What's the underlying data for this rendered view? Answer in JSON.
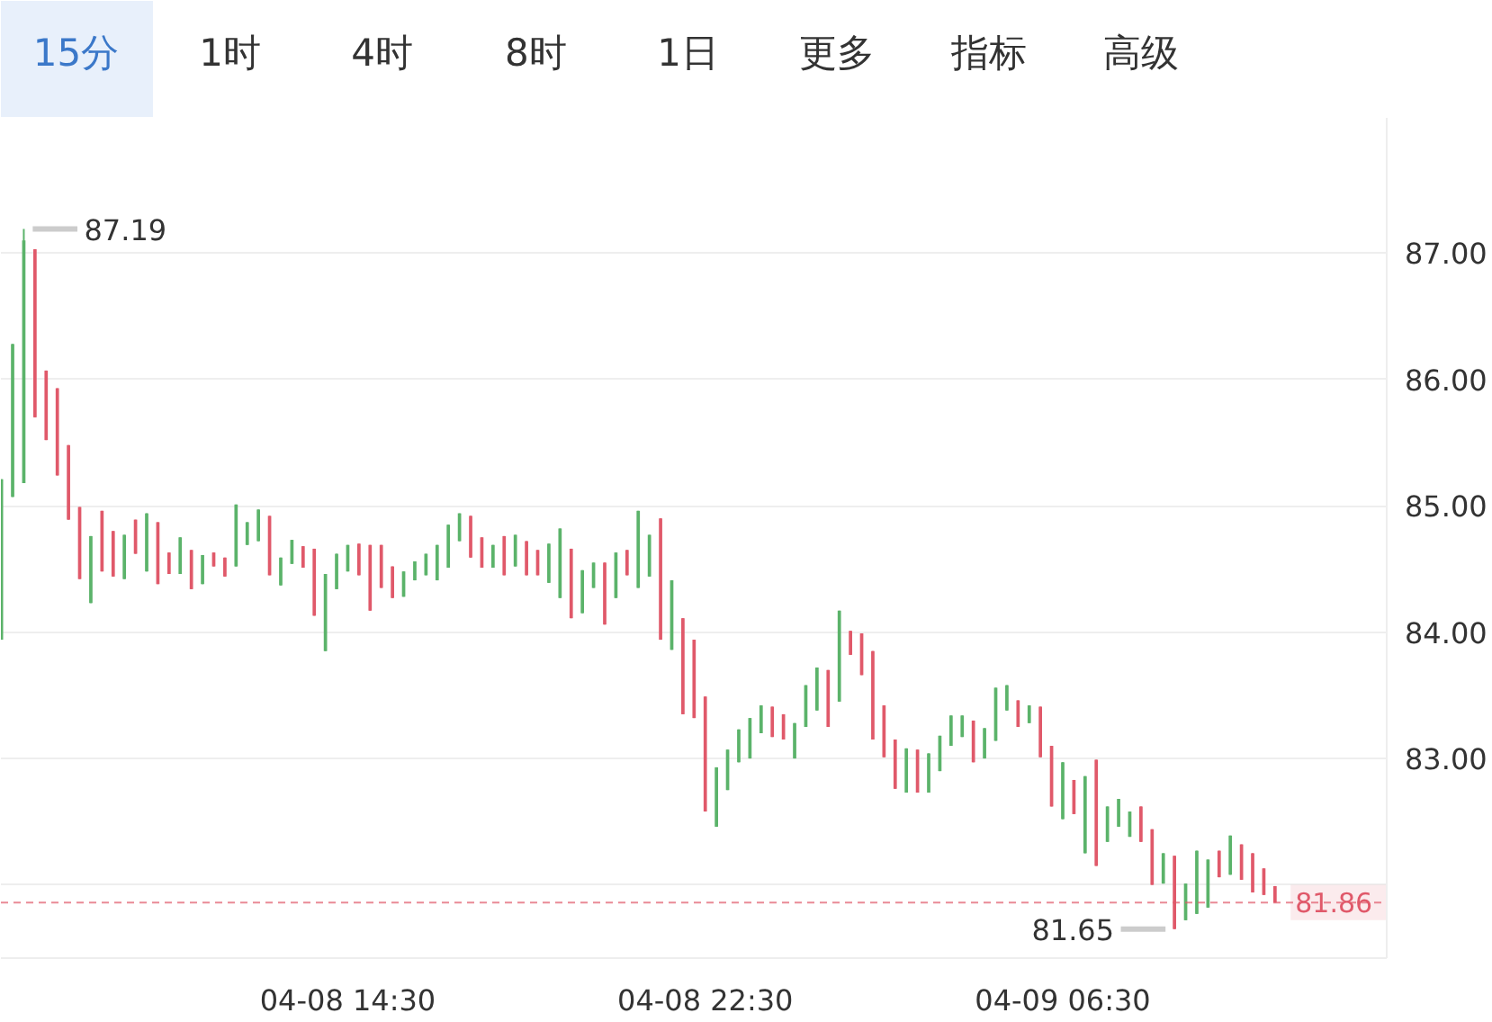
{
  "chart_data": {
    "type": "candlestick",
    "categories": [
      null,
      null,
      null,
      null,
      null,
      null,
      null,
      null,
      null,
      null,
      null,
      null,
      null,
      null,
      null,
      null,
      null,
      null,
      null,
      null,
      null,
      null,
      null,
      null,
      null,
      null,
      null,
      null,
      null,
      null,
      null,
      "04-08 14:30",
      null,
      null,
      null,
      null,
      null,
      null,
      null,
      null,
      null,
      null,
      null,
      null,
      null,
      null,
      null,
      null,
      null,
      null,
      null,
      null,
      null,
      null,
      null,
      null,
      null,
      null,
      null,
      null,
      null,
      null,
      null,
      "04-08 22:30",
      null,
      null,
      null,
      null,
      null,
      null,
      null,
      null,
      null,
      null,
      null,
      null,
      null,
      null,
      null,
      null,
      null,
      null,
      null,
      null,
      null,
      null,
      null,
      null,
      null,
      null,
      null,
      null,
      null,
      null,
      null,
      "04-09 06:30",
      null,
      null,
      null,
      null,
      null,
      null,
      null,
      null,
      null,
      null,
      null,
      null,
      null,
      null,
      null,
      null,
      null,
      null,
      null
    ],
    "ohlc": [
      [
        83.94,
        85.21,
        83.94,
        85.21
      ],
      [
        85.07,
        86.28,
        85.07,
        86.28
      ],
      [
        85.18,
        87.19,
        85.18,
        87.1
      ],
      [
        87.03,
        87.03,
        85.7,
        85.7
      ],
      [
        86.07,
        86.07,
        85.52,
        85.52
      ],
      [
        85.93,
        85.93,
        85.24,
        85.24
      ],
      [
        85.48,
        85.48,
        84.89,
        84.89
      ],
      [
        84.99,
        84.99,
        84.42,
        84.42
      ],
      [
        84.23,
        84.76,
        84.23,
        84.76
      ],
      [
        84.96,
        84.96,
        84.48,
        84.48
      ],
      [
        84.8,
        84.8,
        84.44,
        84.44
      ],
      [
        84.42,
        84.77,
        84.42,
        84.77
      ],
      [
        84.89,
        84.89,
        84.62,
        84.62
      ],
      [
        84.48,
        84.94,
        84.48,
        84.94
      ],
      [
        84.87,
        84.87,
        84.38,
        84.38
      ],
      [
        84.63,
        84.63,
        84.46,
        84.46
      ],
      [
        84.46,
        84.75,
        84.46,
        84.75
      ],
      [
        84.65,
        84.65,
        84.34,
        84.34
      ],
      [
        84.38,
        84.61,
        84.38,
        84.61
      ],
      [
        84.63,
        84.63,
        84.52,
        84.52
      ],
      [
        84.59,
        84.59,
        84.44,
        84.44
      ],
      [
        84.52,
        85.01,
        84.52,
        85.01
      ],
      [
        84.69,
        84.87,
        84.69,
        84.87
      ],
      [
        84.72,
        84.97,
        84.72,
        84.97
      ],
      [
        84.92,
        84.92,
        84.45,
        84.45
      ],
      [
        84.37,
        84.59,
        84.37,
        84.59
      ],
      [
        84.54,
        84.73,
        84.54,
        84.73
      ],
      [
        84.68,
        84.68,
        84.51,
        84.51
      ],
      [
        84.66,
        84.66,
        84.13,
        84.13
      ],
      [
        83.85,
        84.46,
        83.85,
        84.46
      ],
      [
        84.34,
        84.62,
        84.34,
        84.62
      ],
      [
        84.48,
        84.69,
        84.48,
        84.69
      ],
      [
        84.7,
        84.7,
        84.45,
        84.45
      ],
      [
        84.69,
        84.69,
        84.17,
        84.17
      ],
      [
        84.69,
        84.69,
        84.35,
        84.35
      ],
      [
        84.52,
        84.52,
        84.27,
        84.27
      ],
      [
        84.28,
        84.48,
        84.28,
        84.48
      ],
      [
        84.41,
        84.56,
        84.41,
        84.56
      ],
      [
        84.45,
        84.62,
        84.45,
        84.62
      ],
      [
        84.41,
        84.69,
        84.41,
        84.69
      ],
      [
        84.51,
        84.85,
        84.51,
        84.85
      ],
      [
        84.72,
        84.94,
        84.72,
        84.94
      ],
      [
        84.92,
        84.92,
        84.59,
        84.59
      ],
      [
        84.75,
        84.75,
        84.51,
        84.51
      ],
      [
        84.51,
        84.69,
        84.51,
        84.69
      ],
      [
        84.76,
        84.76,
        84.45,
        84.45
      ],
      [
        84.52,
        84.77,
        84.52,
        84.77
      ],
      [
        84.72,
        84.72,
        84.45,
        84.45
      ],
      [
        84.65,
        84.65,
        84.45,
        84.45
      ],
      [
        84.39,
        84.7,
        84.39,
        84.7
      ],
      [
        84.27,
        84.82,
        84.27,
        84.82
      ],
      [
        84.66,
        84.66,
        84.11,
        84.11
      ],
      [
        84.15,
        84.49,
        84.15,
        84.49
      ],
      [
        84.35,
        84.55,
        84.35,
        84.55
      ],
      [
        84.55,
        84.55,
        84.06,
        84.06
      ],
      [
        84.27,
        84.63,
        84.27,
        84.63
      ],
      [
        84.65,
        84.65,
        84.45,
        84.45
      ],
      [
        84.35,
        84.96,
        84.35,
        84.96
      ],
      [
        84.44,
        84.77,
        84.44,
        84.77
      ],
      [
        84.9,
        84.9,
        83.94,
        83.94
      ],
      [
        83.86,
        84.41,
        83.86,
        84.41
      ],
      [
        84.11,
        84.11,
        83.35,
        83.35
      ],
      [
        83.94,
        83.94,
        83.32,
        83.32
      ],
      [
        83.49,
        83.49,
        82.58,
        82.58
      ],
      [
        82.46,
        82.93,
        82.46,
        82.93
      ],
      [
        82.75,
        83.07,
        82.75,
        83.07
      ],
      [
        82.97,
        83.23,
        82.97,
        83.23
      ],
      [
        83.0,
        83.32,
        83.0,
        83.32
      ],
      [
        83.2,
        83.42,
        83.2,
        83.42
      ],
      [
        83.41,
        83.41,
        83.17,
        83.17
      ],
      [
        83.35,
        83.35,
        83.15,
        83.15
      ],
      [
        83.0,
        83.28,
        83.0,
        83.28
      ],
      [
        83.25,
        83.58,
        83.25,
        83.58
      ],
      [
        83.38,
        83.72,
        83.38,
        83.72
      ],
      [
        83.7,
        83.7,
        83.25,
        83.25
      ],
      [
        83.45,
        84.17,
        83.45,
        84.17
      ],
      [
        84.01,
        84.01,
        83.82,
        83.82
      ],
      [
        83.99,
        83.99,
        83.66,
        83.66
      ],
      [
        83.85,
        83.85,
        83.15,
        83.15
      ],
      [
        83.42,
        83.42,
        83.01,
        83.01
      ],
      [
        83.15,
        83.15,
        82.76,
        82.76
      ],
      [
        82.73,
        83.08,
        82.73,
        83.08
      ],
      [
        83.07,
        83.07,
        82.73,
        82.73
      ],
      [
        82.73,
        83.04,
        82.73,
        83.04
      ],
      [
        82.9,
        83.18,
        82.9,
        83.18
      ],
      [
        83.1,
        83.34,
        83.1,
        83.34
      ],
      [
        83.17,
        83.34,
        83.17,
        83.34
      ],
      [
        83.3,
        83.3,
        82.97,
        82.97
      ],
      [
        83.0,
        83.24,
        83.0,
        83.24
      ],
      [
        83.14,
        83.56,
        83.14,
        83.56
      ],
      [
        83.38,
        83.58,
        83.38,
        83.58
      ],
      [
        83.46,
        83.46,
        83.25,
        83.25
      ],
      [
        83.28,
        83.42,
        83.28,
        83.42
      ],
      [
        83.41,
        83.41,
        83.01,
        83.01
      ],
      [
        83.1,
        83.1,
        82.62,
        82.62
      ],
      [
        82.52,
        82.97,
        82.52,
        82.97
      ],
      [
        82.83,
        82.83,
        82.56,
        82.56
      ],
      [
        82.25,
        82.86,
        82.25,
        82.86
      ],
      [
        82.99,
        82.99,
        82.15,
        82.15
      ],
      [
        82.34,
        82.62,
        82.34,
        82.62
      ],
      [
        82.46,
        82.68,
        82.46,
        82.68
      ],
      [
        82.38,
        82.58,
        82.38,
        82.58
      ],
      [
        82.62,
        82.62,
        82.34,
        82.34
      ],
      [
        82.44,
        82.44,
        82.0,
        82.0
      ],
      [
        82.01,
        82.25,
        82.01,
        82.25
      ],
      [
        82.23,
        82.23,
        81.65,
        81.65
      ],
      [
        81.72,
        82.01,
        81.72,
        82.01
      ],
      [
        81.77,
        82.27,
        81.77,
        82.27
      ],
      [
        81.82,
        82.2,
        81.82,
        82.2
      ],
      [
        82.27,
        82.27,
        82.06,
        82.06
      ],
      [
        82.08,
        82.39,
        82.08,
        82.39
      ],
      [
        82.32,
        82.32,
        82.04,
        82.04
      ],
      [
        82.25,
        82.25,
        81.94,
        81.94
      ],
      [
        82.13,
        82.13,
        81.92,
        81.92
      ],
      [
        81.99,
        81.99,
        81.86,
        81.86
      ]
    ],
    "colors": [
      "#5bb36a",
      "#5bb36a",
      "#5bb36a",
      "#e0596a",
      "#e0596a",
      "#e0596a",
      "#e0596a",
      "#e0596a",
      "#5bb36a",
      "#e0596a",
      "#e0596a",
      "#5bb36a",
      "#e0596a",
      "#5bb36a",
      "#e0596a",
      "#e0596a",
      "#5bb36a",
      "#e0596a",
      "#5bb36a",
      "#e0596a",
      "#e0596a",
      "#5bb36a",
      "#5bb36a",
      "#5bb36a",
      "#e0596a",
      "#5bb36a",
      "#5bb36a",
      "#e0596a",
      "#e0596a",
      "#5bb36a",
      "#5bb36a",
      "#5bb36a",
      "#e0596a",
      "#e0596a",
      "#e0596a",
      "#e0596a",
      "#5bb36a",
      "#5bb36a",
      "#5bb36a",
      "#5bb36a",
      "#5bb36a",
      "#5bb36a",
      "#e0596a",
      "#e0596a",
      "#5bb36a",
      "#e0596a",
      "#5bb36a",
      "#e0596a",
      "#e0596a",
      "#5bb36a",
      "#5bb36a",
      "#e0596a",
      "#5bb36a",
      "#5bb36a",
      "#e0596a",
      "#5bb36a",
      "#e0596a",
      "#5bb36a",
      "#5bb36a",
      "#e0596a",
      "#5bb36a",
      "#e0596a",
      "#e0596a",
      "#e0596a",
      "#5bb36a",
      "#5bb36a",
      "#5bb36a",
      "#5bb36a",
      "#5bb36a",
      "#e0596a",
      "#e0596a",
      "#5bb36a",
      "#5bb36a",
      "#5bb36a",
      "#e0596a",
      "#5bb36a",
      "#e0596a",
      "#e0596a",
      "#e0596a",
      "#e0596a",
      "#e0596a",
      "#5bb36a",
      "#e0596a",
      "#5bb36a",
      "#5bb36a",
      "#5bb36a",
      "#5bb36a",
      "#e0596a",
      "#5bb36a",
      "#5bb36a",
      "#5bb36a",
      "#e0596a",
      "#5bb36a",
      "#e0596a",
      "#e0596a",
      "#5bb36a",
      "#e0596a",
      "#5bb36a",
      "#e0596a",
      "#5bb36a",
      "#5bb36a",
      "#5bb36a",
      "#e0596a",
      "#e0596a",
      "#5bb36a",
      "#e0596a",
      "#5bb36a",
      "#5bb36a",
      "#5bb36a",
      "#e0596a",
      "#5bb36a",
      "#e0596a",
      "#e0596a",
      "#e0596a",
      "#e0596a"
    ],
    "ylim": [
      81.42,
      88.07
    ],
    "yticks": [
      {
        "value": 82,
        "label": null
      },
      {
        "value": 83,
        "label": "83.00"
      },
      {
        "value": 84,
        "label": "84.00"
      },
      {
        "value": 85,
        "label": "85.00"
      },
      {
        "value": 86,
        "label": "86.00"
      },
      {
        "value": 87,
        "label": "87.00"
      }
    ],
    "grid": "y",
    "ref_lines": [
      {
        "axis": "y",
        "value": 81.86,
        "label": "81.86",
        "color": "#e0596a",
        "line_style": "dashed"
      }
    ],
    "annotations": [
      "15分",
      "1时",
      "4时",
      "8时",
      "1日",
      "更多",
      "指标",
      "高级",
      "87.19",
      "81.65"
    ]
  }
}
